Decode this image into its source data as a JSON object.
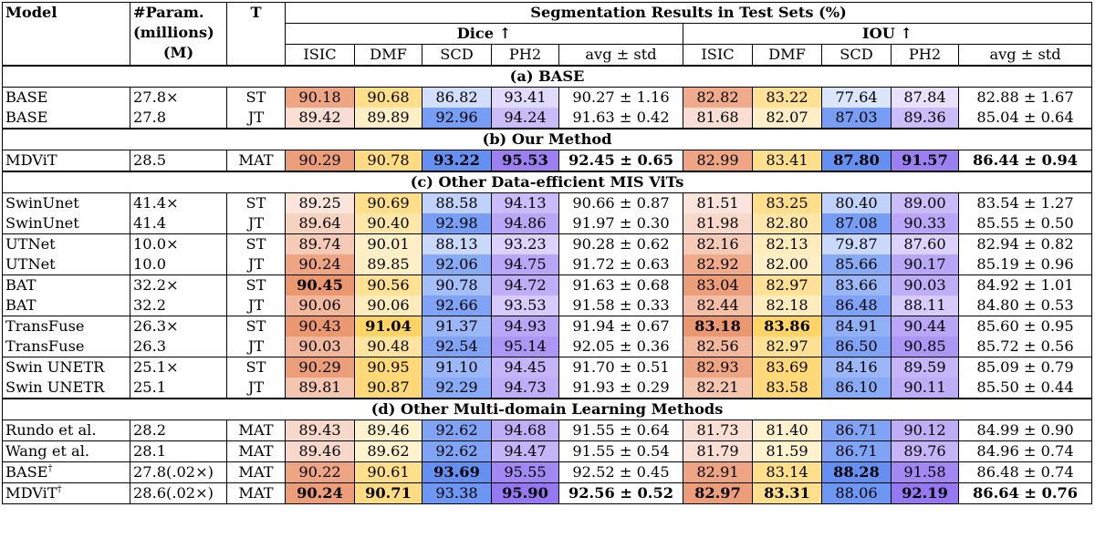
{
  "header": {
    "model": "Model",
    "param_line1": "#Param.",
    "param_line2": "(millions)",
    "param_line3": "(M)",
    "t": "T",
    "seg_title": "Segmentation Results in Test Sets (%)",
    "dice": "Dice ↑",
    "iou": "IOU ↑",
    "cols": [
      "ISIC",
      "DMF",
      "SCD",
      "PH2",
      "avg ± std"
    ]
  },
  "colors": {
    "isic": "#e67e4e",
    "dmf": "#ffc940",
    "scd": "#4a7cf0",
    "ph2": "#8a6af0"
  },
  "sections": [
    {
      "title": "(a) BASE",
      "groups": [
        [
          {
            "model": "BASE",
            "sup": "",
            "param": "27.8×",
            "t": "ST",
            "dice": [
              "90.18",
              "90.68",
              "86.82",
              "93.41",
              "90.27 ± 1.16"
            ],
            "iou": [
              "82.82",
              "83.22",
              "77.64",
              "87.84",
              "82.88 ± 1.67"
            ],
            "bold": [],
            "shade": [
              0.7,
              0.6,
              0.25,
              0.25,
              0,
              0.65,
              0.55,
              0.2,
              0.2,
              0
            ]
          },
          {
            "model": "BASE",
            "sup": "",
            "param": "27.8",
            "t": "JT",
            "dice": [
              "89.42",
              "89.89",
              "92.96",
              "94.24",
              "91.63 ± 0.42"
            ],
            "iou": [
              "81.68",
              "82.07",
              "87.03",
              "89.36",
              "85.04 ± 0.64"
            ],
            "bold": [],
            "shade": [
              0.25,
              0.3,
              0.75,
              0.45,
              0,
              0.25,
              0.3,
              0.75,
              0.45,
              0
            ]
          }
        ]
      ]
    },
    {
      "title": "(b) Our Method",
      "groups": [
        [
          {
            "model": "MDViT",
            "sup": "",
            "param": "28.5",
            "t": "MAT",
            "dice": [
              "90.29",
              "90.78",
              "93.22",
              "95.53",
              "92.45 ± 0.65"
            ],
            "iou": [
              "82.99",
              "83.41",
              "87.80",
              "91.57",
              "86.44 ± 0.94"
            ],
            "bold": [
              2,
              3,
              4,
              7,
              8,
              9
            ],
            "shade": [
              0.75,
              0.65,
              0.85,
              0.85,
              0,
              0.7,
              0.6,
              0.85,
              0.85,
              0
            ]
          }
        ]
      ]
    },
    {
      "title": "(c) Other Data-efficient MIS ViTs",
      "groups": [
        [
          {
            "model": "SwinUnet",
            "sup": "",
            "param": "41.4×",
            "t": "ST",
            "dice": [
              "89.25",
              "90.69",
              "88.58",
              "94.13",
              "90.66 ± 0.87"
            ],
            "iou": [
              "81.51",
              "83.25",
              "80.40",
              "89.00",
              "83.54 ± 1.27"
            ],
            "bold": [],
            "shade": [
              0.2,
              0.6,
              0.35,
              0.45,
              0,
              0.2,
              0.6,
              0.35,
              0.45,
              0
            ]
          },
          {
            "model": "SwinUnet",
            "sup": "",
            "param": "41.4",
            "t": "JT",
            "dice": [
              "89.64",
              "90.40",
              "92.98",
              "94.86",
              "91.97 ± 0.30"
            ],
            "iou": [
              "81.98",
              "82.80",
              "87.08",
              "90.33",
              "85.55 ± 0.50"
            ],
            "bold": [],
            "shade": [
              0.35,
              0.45,
              0.75,
              0.6,
              0,
              0.3,
              0.45,
              0.75,
              0.6,
              0
            ]
          }
        ],
        [
          {
            "model": "UTNet",
            "sup": "",
            "param": "10.0×",
            "t": "ST",
            "dice": [
              "89.74",
              "90.01",
              "88.13",
              "93.23",
              "90.28 ± 0.62"
            ],
            "iou": [
              "82.16",
              "82.13",
              "79.87",
              "87.60",
              "82.94 ± 0.82"
            ],
            "bold": [],
            "shade": [
              0.4,
              0.3,
              0.3,
              0.3,
              0,
              0.4,
              0.35,
              0.3,
              0.3,
              0
            ]
          },
          {
            "model": "UTNet",
            "sup": "",
            "param": "10.0",
            "t": "JT",
            "dice": [
              "90.24",
              "89.85",
              "92.06",
              "94.75",
              "91.72 ± 0.63"
            ],
            "iou": [
              "82.92",
              "82.00",
              "85.66",
              "90.17",
              "85.19 ± 0.96"
            ],
            "bold": [],
            "shade": [
              0.7,
              0.3,
              0.65,
              0.6,
              0,
              0.65,
              0.3,
              0.65,
              0.6,
              0
            ]
          }
        ],
        [
          {
            "model": "BAT",
            "sup": "",
            "param": "32.2×",
            "t": "ST",
            "dice": [
              "90.45",
              "90.56",
              "90.78",
              "94.72",
              "91.63 ± 0.68"
            ],
            "iou": [
              "83.04",
              "82.97",
              "83.66",
              "90.03",
              "84.92 ± 1.01"
            ],
            "bold": [
              0
            ],
            "shade": [
              0.8,
              0.55,
              0.5,
              0.55,
              0,
              0.75,
              0.55,
              0.55,
              0.55,
              0
            ]
          },
          {
            "model": "BAT",
            "sup": "",
            "param": "32.2",
            "t": "JT",
            "dice": [
              "90.06",
              "90.06",
              "92.66",
              "93.53",
              "91.58 ± 0.33"
            ],
            "iou": [
              "82.44",
              "82.18",
              "86.48",
              "88.11",
              "84.80 ± 0.53"
            ],
            "bold": [],
            "shade": [
              0.55,
              0.35,
              0.7,
              0.35,
              0,
              0.5,
              0.35,
              0.7,
              0.35,
              0
            ]
          }
        ],
        [
          {
            "model": "TransFuse",
            "sup": "",
            "param": "26.3×",
            "t": "ST",
            "dice": [
              "90.43",
              "91.04",
              "91.37",
              "94.93",
              "91.94 ± 0.67"
            ],
            "iou": [
              "83.18",
              "83.86",
              "84.91",
              "90.44",
              "85.60 ± 0.95"
            ],
            "bold": [
              1,
              5,
              6
            ],
            "shade": [
              0.8,
              0.8,
              0.55,
              0.6,
              0,
              0.8,
              0.8,
              0.6,
              0.6,
              0
            ]
          },
          {
            "model": "TransFuse",
            "sup": "",
            "param": "26.3",
            "t": "JT",
            "dice": [
              "90.03",
              "90.48",
              "92.54",
              "95.14",
              "92.05 ± 0.36"
            ],
            "iou": [
              "82.56",
              "82.97",
              "86.50",
              "90.85",
              "85.72 ± 0.56"
            ],
            "bold": [],
            "shade": [
              0.55,
              0.5,
              0.7,
              0.7,
              0,
              0.55,
              0.55,
              0.7,
              0.7,
              0
            ]
          }
        ],
        [
          {
            "model": "Swin UNETR",
            "sup": "",
            "param": "25.1×",
            "t": "ST",
            "dice": [
              "90.29",
              "90.95",
              "91.10",
              "94.45",
              "91.70 ± 0.51"
            ],
            "iou": [
              "82.93",
              "83.69",
              "84.16",
              "89.59",
              "85.09 ± 0.79"
            ],
            "bold": [],
            "shade": [
              0.75,
              0.7,
              0.55,
              0.5,
              0,
              0.7,
              0.7,
              0.55,
              0.5,
              0
            ]
          },
          {
            "model": "Swin UNETR",
            "sup": "",
            "param": "25.1",
            "t": "JT",
            "dice": [
              "89.81",
              "90.87",
              "92.29",
              "94.73",
              "91.93 ± 0.29"
            ],
            "iou": [
              "82.21",
              "83.58",
              "86.10",
              "90.11",
              "85.50 ± 0.44"
            ],
            "bold": [],
            "shade": [
              0.45,
              0.7,
              0.65,
              0.55,
              0,
              0.45,
              0.7,
              0.65,
              0.55,
              0
            ]
          }
        ]
      ]
    },
    {
      "title": "(d) Other Multi-domain Learning Methods",
      "groups": [
        [
          {
            "model": "Rundo et al.",
            "sup": "",
            "param": "28.2",
            "t": "MAT",
            "dice": [
              "89.43",
              "89.46",
              "92.62",
              "94.68",
              "91.55 ± 0.64"
            ],
            "iou": [
              "81.73",
              "81.40",
              "86.71",
              "90.12",
              "84.99 ± 0.90"
            ],
            "bold": [],
            "shade": [
              0.3,
              0.25,
              0.7,
              0.55,
              0,
              0.25,
              0.25,
              0.7,
              0.55,
              0
            ]
          }
        ],
        [
          {
            "model": "Wang et al.",
            "sup": "",
            "param": "28.1",
            "t": "MAT",
            "dice": [
              "89.46",
              "89.62",
              "92.62",
              "94.47",
              "91.55 ± 0.54"
            ],
            "iou": [
              "81.79",
              "81.59",
              "86.71",
              "89.76",
              "84.96 ± 0.74"
            ],
            "bold": [],
            "shade": [
              0.3,
              0.25,
              0.7,
              0.5,
              0,
              0.25,
              0.25,
              0.7,
              0.5,
              0
            ]
          }
        ],
        [
          {
            "model": "BASE",
            "sup": "†",
            "param": "27.8(.02×)",
            "t": "MAT",
            "dice": [
              "90.22",
              "90.61",
              "93.69",
              "95.55",
              "92.52 ± 0.45"
            ],
            "iou": [
              "82.91",
              "83.14",
              "88.28",
              "91.58",
              "86.48 ± 0.74"
            ],
            "bold": [
              2,
              7
            ],
            "shade": [
              0.7,
              0.6,
              0.85,
              0.8,
              0,
              0.7,
              0.6,
              0.85,
              0.8,
              0
            ]
          }
        ],
        [
          {
            "model": "MDViT",
            "sup": "†",
            "param": "28.6(.02×)",
            "t": "MAT",
            "dice": [
              "90.24",
              "90.71",
              "93.38",
              "95.90",
              "92.56 ± 0.52"
            ],
            "iou": [
              "82.97",
              "83.31",
              "88.06",
              "92.19",
              "86.64 ± 0.76"
            ],
            "bold": [
              0,
              1,
              3,
              4,
              5,
              6,
              8,
              9
            ],
            "shade": [
              0.75,
              0.65,
              0.8,
              0.9,
              0,
              0.75,
              0.6,
              0.8,
              0.9,
              0
            ]
          }
        ]
      ]
    }
  ]
}
